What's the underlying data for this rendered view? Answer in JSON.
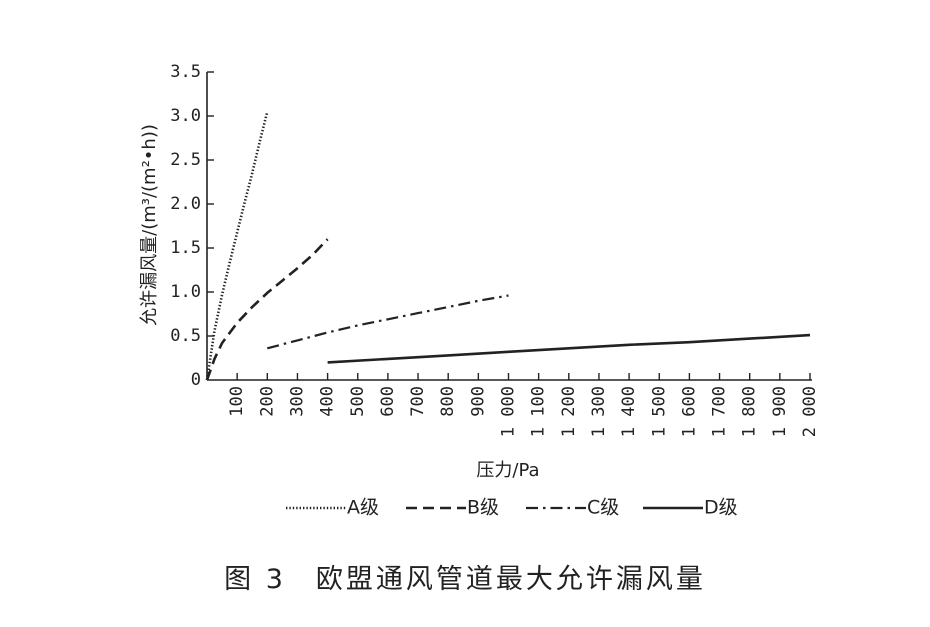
{
  "caption": "图 3　欧盟通风管道最大允许漏风量",
  "chart_data": {
    "type": "line",
    "xlabel": "压力/Pa",
    "ylabel": "允许漏风量/(m³/(m²•h))",
    "xlim": [
      0,
      2000
    ],
    "ylim": [
      0,
      3.5
    ],
    "x_ticks": [
      100,
      200,
      300,
      400,
      500,
      600,
      700,
      800,
      900,
      1000,
      1100,
      1200,
      1300,
      1400,
      1500,
      1600,
      1700,
      1800,
      1900,
      2000
    ],
    "x_tick_labels": [
      "100",
      "200",
      "300",
      "400",
      "500",
      "600",
      "700",
      "800",
      "900",
      "1 000",
      "1 100",
      "1 200",
      "1 300",
      "1 400",
      "1 500",
      "1 600",
      "1 700",
      "1 800",
      "1 900",
      "2 000"
    ],
    "y_ticks": [
      0,
      0.5,
      1.0,
      1.5,
      2.0,
      2.5,
      3.0,
      3.5
    ],
    "y_tick_labels": [
      "0",
      "0.5",
      "1.0",
      "1.5",
      "2.0",
      "2.5",
      "3.0",
      "3.5"
    ],
    "legend_position": "bottom",
    "series": [
      {
        "name": "A级",
        "style": "dotted",
        "x": [
          0,
          25,
          50,
          75,
          100,
          125,
          150,
          175,
          200
        ],
        "y": [
          0,
          0.56,
          0.97,
          1.33,
          1.68,
          2.02,
          2.35,
          2.71,
          3.05
        ]
      },
      {
        "name": "B级",
        "style": "dashed",
        "x": [
          0,
          25,
          50,
          100,
          150,
          200,
          250,
          300,
          350,
          400
        ],
        "y": [
          0,
          0.24,
          0.42,
          0.65,
          0.83,
          0.99,
          1.13,
          1.27,
          1.42,
          1.6
        ]
      },
      {
        "name": "C级",
        "style": "dashdot",
        "x": [
          200,
          300,
          400,
          500,
          600,
          700,
          800,
          900,
          1000
        ],
        "y": [
          0.36,
          0.45,
          0.54,
          0.62,
          0.69,
          0.76,
          0.83,
          0.9,
          0.96
        ]
      },
      {
        "name": "D级",
        "style": "solid",
        "x": [
          400,
          600,
          800,
          1000,
          1200,
          1400,
          1600,
          1800,
          2000
        ],
        "y": [
          0.2,
          0.24,
          0.28,
          0.32,
          0.36,
          0.4,
          0.43,
          0.47,
          0.51
        ]
      }
    ]
  }
}
